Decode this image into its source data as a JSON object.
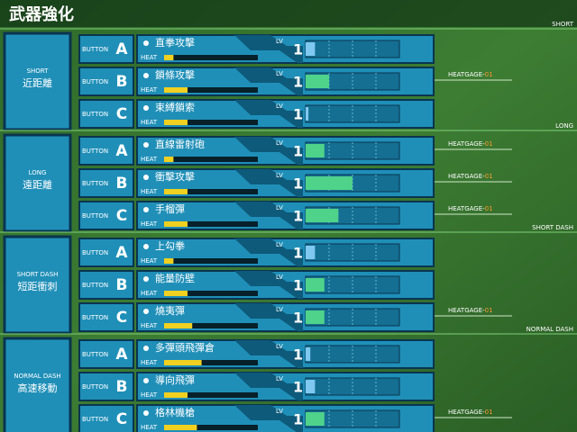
{
  "title": "武器強化",
  "labels": {
    "button": "BUTTON",
    "lv": "LV",
    "heat": "HEAT"
  },
  "sections": [
    {
      "name_en": "SHORT",
      "name_zh": "近距離",
      "rows": [
        {
          "button": "A",
          "weapon": "直拳攻擊",
          "lv": 1,
          "heat": 10,
          "gauge": 10
        },
        {
          "button": "B",
          "weapon": "鎖條攻擊",
          "lv": 1,
          "heat": 25,
          "gauge": 25,
          "gage": {
            "label": "HEATGAGE-",
            "level": "01"
          }
        },
        {
          "button": "C",
          "weapon": "束縛鎖索",
          "lv": 1,
          "heat": 25,
          "gauge": 3
        }
      ]
    },
    {
      "name_en": "LONG",
      "name_zh": "遠距離",
      "rows": [
        {
          "button": "A",
          "weapon": "直線雷射砲",
          "lv": 1,
          "heat": 10,
          "gauge": 20,
          "gage": {
            "label": "HEATGAGE-",
            "level": "01"
          }
        },
        {
          "button": "B",
          "weapon": "衝擊攻擊",
          "lv": 1,
          "heat": 25,
          "gauge": 50,
          "gage": {
            "label": "HEATGAGE-",
            "level": "01"
          }
        },
        {
          "button": "C",
          "weapon": "手榴彈",
          "lv": 1,
          "heat": 25,
          "gauge": 35,
          "gage": {
            "label": "HEATGAGE-",
            "level": "01"
          }
        }
      ]
    },
    {
      "name_en": "SHORT DASH",
      "name_zh": "短距衝刺",
      "rows": [
        {
          "button": "A",
          "weapon": "上勾拳",
          "lv": 1,
          "heat": 10,
          "gauge": 10
        },
        {
          "button": "B",
          "weapon": "能量防壁",
          "lv": 1,
          "heat": 25,
          "gauge": 20
        },
        {
          "button": "C",
          "weapon": "燒夷彈",
          "lv": 1,
          "heat": 30,
          "gauge": 20,
          "gage": {
            "label": "HEATGAGE-",
            "level": "01"
          }
        }
      ]
    },
    {
      "name_en": "NORMAL DASH",
      "name_zh": "高速移動",
      "rows": [
        {
          "button": "A",
          "weapon": "多彈頭飛彈倉",
          "lv": 1,
          "heat": 40,
          "gauge": 5
        },
        {
          "button": "B",
          "weapon": "導向飛彈",
          "lv": 1,
          "heat": 25,
          "gauge": 10
        },
        {
          "button": "C",
          "weapon": "格林機槍",
          "lv": 1,
          "heat": 35,
          "gauge": 20,
          "gage": {
            "label": "HEATGAGE-",
            "level": "01"
          }
        }
      ]
    }
  ]
}
